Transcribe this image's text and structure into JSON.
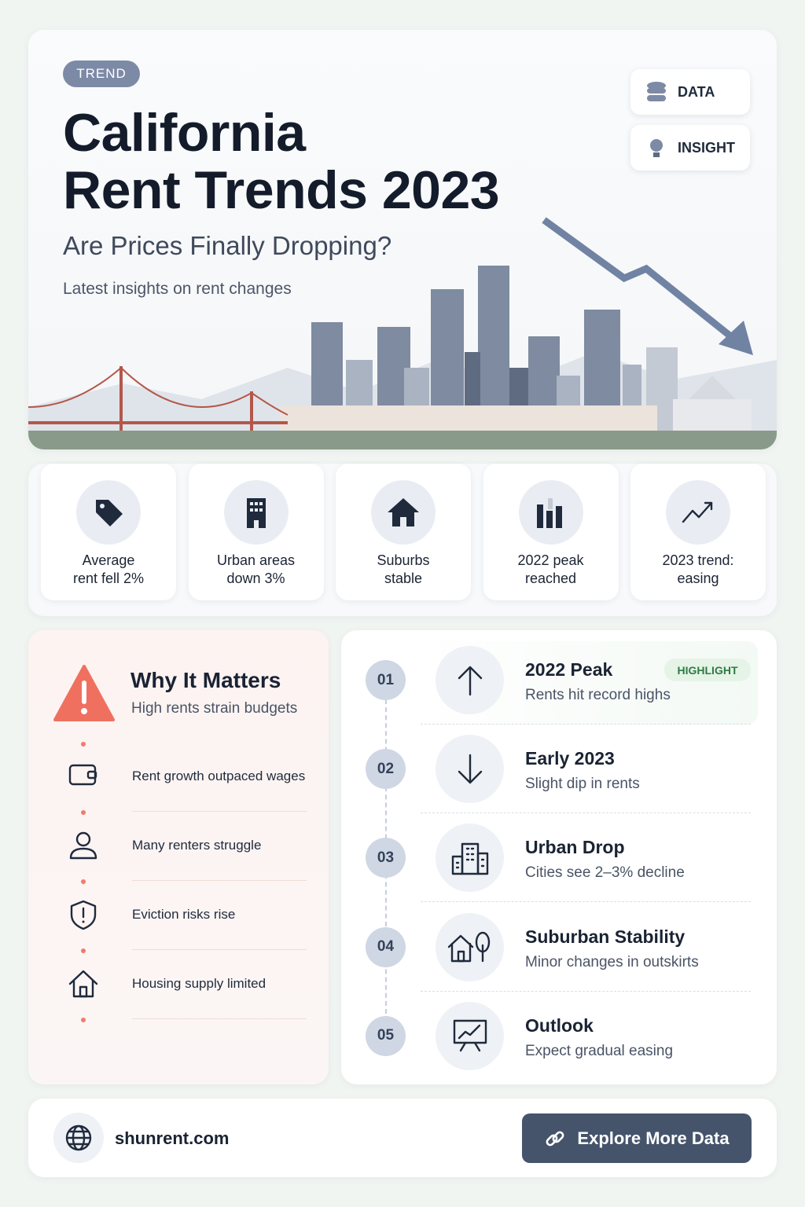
{
  "header": {
    "badge": "TREND",
    "title_lines": [
      "California",
      "Rent Trends 2023"
    ],
    "subtitle": "Are Prices Finally Dropping?",
    "tagline": "Latest insights on rent changes",
    "chips": [
      "DATA",
      "INSIGHT"
    ]
  },
  "stats": [
    "Average\nrent fell 2%",
    "Urban areas\ndown 3%",
    "Suburbs\nstable",
    "2022 peak\nreached",
    "2023 trend:\neasing"
  ],
  "why": {
    "title": "Why It Matters",
    "subtitle": "High rents strain budgets",
    "items": [
      "Rent growth outpaced wages",
      "Many renters struggle",
      "Eviction risks rise",
      "Housing supply limited"
    ]
  },
  "timeline": {
    "highlight": "HIGHLIGHT",
    "steps": [
      {
        "num": "01",
        "title": "2022 Peak",
        "desc": "Rents hit record highs"
      },
      {
        "num": "02",
        "title": "Early 2023",
        "desc": "Slight dip in rents"
      },
      {
        "num": "03",
        "title": "Urban Drop",
        "desc": "Cities see 2–3% decline"
      },
      {
        "num": "04",
        "title": "Suburban Stability",
        "desc": "Minor changes in outskirts"
      },
      {
        "num": "05",
        "title": "Outlook",
        "desc": "Expect gradual easing"
      }
    ]
  },
  "footer": {
    "site": "shunrent.com",
    "button": "Explore More Data"
  }
}
